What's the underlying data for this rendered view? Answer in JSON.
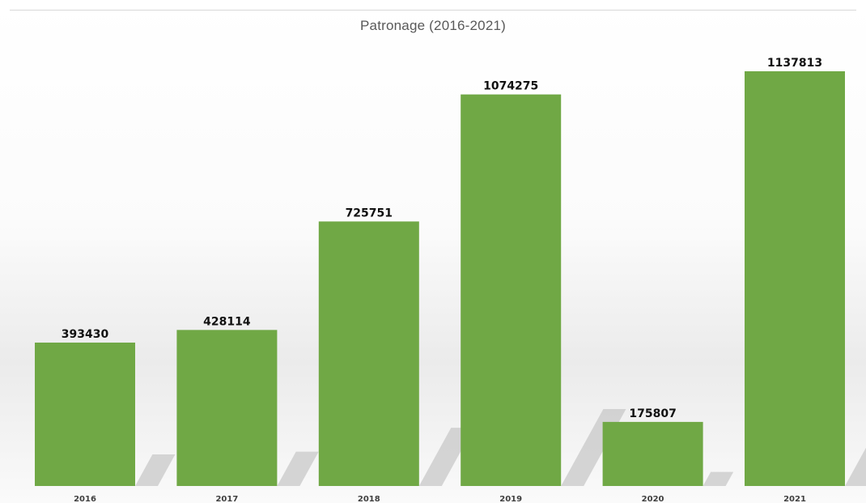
{
  "chart_data": {
    "type": "bar",
    "title": "Patronage (2016-2021)",
    "xlabel": "",
    "ylabel": "",
    "categories": [
      "2016",
      "2017",
      "2018",
      "2019",
      "2020",
      "2021"
    ],
    "values": [
      393430,
      428114,
      725751,
      1074275,
      175807,
      1137813
    ],
    "data_labels": [
      "393430",
      "428114",
      "725751",
      "1074275",
      "175807",
      "1137813"
    ],
    "ylim": [
      0,
      1137813
    ],
    "grid": false,
    "legend": "none",
    "bar_color": "#70a845",
    "shadow_color": "#c8c8c8"
  }
}
